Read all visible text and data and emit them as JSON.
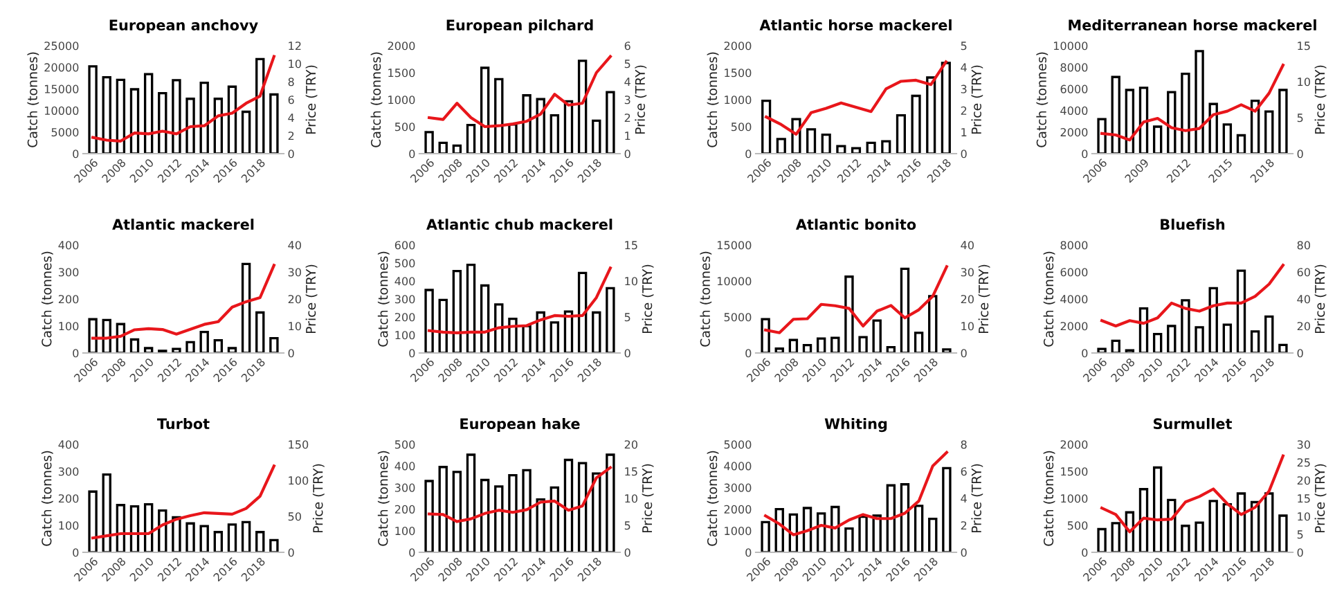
{
  "chart_data": [
    {
      "type": "bar",
      "title": "European anchovy",
      "ylabel": "Catch (tonnes)",
      "y2label": "Price (TRY)",
      "categories": [
        "2006",
        null,
        "2008",
        null,
        "2010",
        null,
        "2012",
        null,
        "2014",
        null,
        "2016",
        null,
        "2018",
        null
      ],
      "ylim": [
        0,
        25000
      ],
      "yticks": [
        0,
        5000,
        10000,
        15000,
        20000,
        25000
      ],
      "y2lim": [
        0,
        12
      ],
      "y2ticks": [
        0,
        2,
        4,
        6,
        8,
        10,
        12
      ],
      "grid": false,
      "legend": false,
      "series": [
        {
          "color": "#ffffff",
          "values": [
            20200,
            17700,
            17100,
            14900,
            18400,
            14000,
            17000,
            12700,
            16400,
            12700,
            15500,
            9700,
            21900,
            13700
          ]
        },
        {
          "type": "line",
          "axis": "y2",
          "color": "#e8161b",
          "marker": "none",
          "line_style": "solid",
          "values": [
            1.8,
            1.5,
            1.4,
            2.3,
            2.2,
            2.5,
            2.2,
            3.0,
            3.1,
            4.2,
            4.5,
            5.6,
            6.4,
            10.8
          ]
        }
      ]
    },
    {
      "type": "bar",
      "title": "European pilchard",
      "ylabel": "Catch (tonnes)",
      "y2label": "Price (TRY)",
      "categories": [
        "2006",
        null,
        "2008",
        null,
        "2010",
        null,
        "2012",
        null,
        "2014",
        null,
        "2016",
        null,
        "2018",
        null
      ],
      "ylim": [
        0,
        2000
      ],
      "yticks": [
        0,
        500,
        1000,
        1500,
        2000
      ],
      "y2lim": [
        0,
        6
      ],
      "y2ticks": [
        0,
        1,
        2,
        3,
        4,
        5,
        6
      ],
      "grid": false,
      "legend": false,
      "series": [
        {
          "color": "#ffffff",
          "values": [
            400,
            200,
            150,
            530,
            1590,
            1380,
            540,
            1080,
            1010,
            710,
            970,
            1720,
            610,
            1140
          ]
        },
        {
          "type": "line",
          "axis": "y2",
          "color": "#e8161b",
          "marker": "none",
          "line_style": "solid",
          "values": [
            2.0,
            1.9,
            2.8,
            2.0,
            1.5,
            1.55,
            1.65,
            1.8,
            2.2,
            3.3,
            2.7,
            2.8,
            4.5,
            5.4
          ]
        }
      ]
    },
    {
      "type": "bar",
      "title": "Atlantic horse mackerel",
      "ylabel": "Catch (tonnes)",
      "y2label": "Price (TRY)",
      "categories": [
        "2006",
        null,
        "2008",
        null,
        "2010",
        null,
        "2012",
        null,
        "2014",
        null,
        "2016",
        null,
        "2018"
      ],
      "ylim": [
        0,
        2000
      ],
      "yticks": [
        0,
        500,
        1000,
        1500,
        2000
      ],
      "y2lim": [
        0,
        5
      ],
      "y2ticks": [
        0,
        1,
        2,
        3,
        4,
        5
      ],
      "grid": false,
      "legend": false,
      "series": [
        {
          "color": "#ffffff",
          "values": [
            980,
            270,
            640,
            450,
            350,
            140,
            100,
            200,
            230,
            710,
            1070,
            1410,
            1680
          ]
        },
        {
          "type": "line",
          "axis": "y2",
          "color": "#e8161b",
          "marker": "none",
          "line_style": "solid",
          "values": [
            1.7,
            1.35,
            0.9,
            1.9,
            2.1,
            2.35,
            2.15,
            1.95,
            3.0,
            3.35,
            3.4,
            3.2,
            4.25
          ]
        }
      ]
    },
    {
      "type": "bar",
      "title": "Mediterranean horse mackerel",
      "ylabel": "Catch (tonnes)",
      "y2label": "Price (TRY)",
      "categories": [
        "2006",
        null,
        null,
        "2009",
        null,
        null,
        "2012",
        null,
        null,
        "2015",
        null,
        null,
        "2018",
        null
      ],
      "ylim": [
        0,
        10000
      ],
      "yticks": [
        0,
        2000,
        4000,
        6000,
        8000,
        10000
      ],
      "y2lim": [
        0,
        15
      ],
      "y2ticks": [
        0,
        5,
        10,
        15
      ],
      "grid": false,
      "legend": false,
      "series": [
        {
          "color": "#ffffff",
          "values": [
            3200,
            7100,
            5900,
            6100,
            2500,
            5700,
            7400,
            9500,
            4600,
            2700,
            1700,
            4900,
            3900,
            5900
          ]
        },
        {
          "type": "line",
          "axis": "y2",
          "color": "#e8161b",
          "marker": "none",
          "line_style": "solid",
          "values": [
            2.8,
            2.6,
            1.9,
            4.4,
            4.9,
            3.6,
            3.2,
            3.5,
            5.4,
            5.9,
            6.8,
            5.9,
            8.4,
            12.3
          ]
        }
      ]
    },
    {
      "type": "bar",
      "title": "Atlantic mackerel",
      "ylabel": "Catch (tonnes)",
      "y2label": "Price (TRY)",
      "categories": [
        "2006",
        null,
        "2008",
        null,
        "2010",
        null,
        "2012",
        null,
        "2014",
        null,
        "2016",
        null,
        "2018",
        null
      ],
      "ylim": [
        0,
        400
      ],
      "yticks": [
        0,
        100,
        200,
        300,
        400
      ],
      "y2lim": [
        0,
        40
      ],
      "y2ticks": [
        0,
        10,
        20,
        30,
        40
      ],
      "grid": false,
      "legend": false,
      "series": [
        {
          "color": "#ffffff",
          "values": [
            125,
            122,
            107,
            50,
            18,
            8,
            15,
            40,
            78,
            47,
            18,
            330,
            150,
            55
          ]
        },
        {
          "type": "line",
          "axis": "y2",
          "color": "#e8161b",
          "marker": "none",
          "line_style": "solid",
          "values": [
            5.5,
            5.5,
            6.2,
            8.6,
            9.0,
            8.7,
            7.0,
            8.8,
            10.6,
            11.6,
            17,
            19,
            20.5,
            32.5
          ]
        }
      ]
    },
    {
      "type": "bar",
      "title": "Atlantic chub mackerel",
      "ylabel": "Catch (tonnes)",
      "y2label": "Price (TRY)",
      "categories": [
        "2006",
        null,
        "2008",
        null,
        "2010",
        null,
        "2012",
        null,
        "2014",
        null,
        "2016",
        null,
        "2018",
        null
      ],
      "ylim": [
        0,
        600
      ],
      "yticks": [
        0,
        100,
        200,
        300,
        400,
        500,
        600
      ],
      "y2lim": [
        0,
        15
      ],
      "y2ticks": [
        0,
        5,
        10,
        15
      ],
      "grid": false,
      "legend": false,
      "series": [
        {
          "color": "#ffffff",
          "values": [
            350,
            295,
            455,
            490,
            375,
            270,
            190,
            150,
            225,
            170,
            230,
            445,
            225,
            360
          ]
        },
        {
          "type": "line",
          "axis": "y2",
          "color": "#e8161b",
          "marker": "none",
          "line_style": "solid",
          "values": [
            3.1,
            2.9,
            2.8,
            2.9,
            2.9,
            3.5,
            3.7,
            3.8,
            4.6,
            5.2,
            5.1,
            5.2,
            7.7,
            11.8
          ]
        }
      ]
    },
    {
      "type": "bar",
      "title": "Atlantic bonito",
      "ylabel": "Catch (tonnes)",
      "y2label": "Price (TRY)",
      "categories": [
        "2006",
        null,
        "2008",
        null,
        "2010",
        null,
        "2012",
        null,
        "2014",
        null,
        "2016",
        null,
        "2018",
        null
      ],
      "ylim": [
        0,
        15000
      ],
      "yticks": [
        0,
        5000,
        10000,
        15000
      ],
      "y2lim": [
        0,
        40
      ],
      "y2ticks": [
        0,
        10,
        20,
        30,
        40
      ],
      "grid": false,
      "legend": false,
      "series": [
        {
          "color": "#ffffff",
          "values": [
            4700,
            600,
            1800,
            1100,
            2000,
            2100,
            10600,
            2200,
            4500,
            800,
            11700,
            2800,
            7900,
            500
          ]
        },
        {
          "type": "line",
          "axis": "y2",
          "color": "#e8161b",
          "marker": "none",
          "line_style": "solid",
          "values": [
            8.5,
            7.5,
            12.5,
            12.7,
            18,
            17.5,
            16.5,
            10,
            15.5,
            17.6,
            13,
            16,
            21,
            32
          ]
        }
      ]
    },
    {
      "type": "bar",
      "title": "Bluefish",
      "ylabel": "Catch (tonnes)",
      "y2label": "Price (TRY)",
      "categories": [
        "2006",
        null,
        "2008",
        null,
        "2010",
        null,
        "2012",
        null,
        "2014",
        null,
        "2016",
        null,
        "2018",
        null
      ],
      "ylim": [
        0,
        8000
      ],
      "yticks": [
        0,
        2000,
        4000,
        6000,
        8000
      ],
      "y2lim": [
        0,
        80
      ],
      "y2ticks": [
        0,
        20,
        40,
        60,
        80
      ],
      "grid": false,
      "legend": false,
      "series": [
        {
          "color": "#ffffff",
          "values": [
            300,
            900,
            200,
            3300,
            1400,
            2000,
            3900,
            1900,
            4800,
            2100,
            6100,
            1600,
            2700,
            600
          ]
        },
        {
          "type": "line",
          "axis": "y2",
          "color": "#e8161b",
          "marker": "none",
          "line_style": "solid",
          "values": [
            24,
            20,
            24,
            22,
            26,
            37,
            33,
            31,
            35,
            37,
            37,
            42,
            51,
            65
          ]
        }
      ]
    },
    {
      "type": "bar",
      "title": "Turbot",
      "ylabel": "Catch (tonnes)",
      "y2label": "Price (TRY)",
      "categories": [
        "2006",
        null,
        "2008",
        null,
        "2010",
        null,
        "2012",
        null,
        "2014",
        null,
        "2016",
        null,
        "2018",
        null
      ],
      "ylim": [
        0,
        400
      ],
      "yticks": [
        0,
        100,
        200,
        300,
        400
      ],
      "y2lim": [
        0,
        150
      ],
      "y2ticks": [
        0,
        50,
        100,
        150
      ],
      "grid": false,
      "legend": false,
      "series": [
        {
          "color": "#ffffff",
          "values": [
            225,
            288,
            175,
            170,
            178,
            155,
            130,
            107,
            97,
            75,
            103,
            112,
            75,
            45
          ]
        },
        {
          "type": "line",
          "axis": "y2",
          "color": "#e8161b",
          "marker": "none",
          "line_style": "solid",
          "values": [
            20,
            23,
            26,
            26,
            26,
            38,
            46,
            51,
            55,
            54,
            53,
            61,
            78,
            120
          ]
        }
      ]
    },
    {
      "type": "bar",
      "title": "European hake",
      "ylabel": "Catch (tonnes)",
      "y2label": "Price (TRY)",
      "categories": [
        "2006",
        null,
        "2008",
        null,
        "2010",
        null,
        "2012",
        null,
        "2014",
        null,
        "2016",
        null,
        "2018",
        null
      ],
      "ylim": [
        0,
        500
      ],
      "yticks": [
        0,
        100,
        200,
        300,
        400,
        500
      ],
      "y2lim": [
        0,
        20
      ],
      "y2ticks": [
        0,
        5,
        10,
        15,
        20
      ],
      "grid": false,
      "legend": false,
      "series": [
        {
          "color": "#ffffff",
          "values": [
            330,
            395,
            372,
            452,
            335,
            305,
            357,
            380,
            245,
            300,
            428,
            413,
            365,
            452
          ]
        },
        {
          "type": "line",
          "axis": "y2",
          "color": "#e8161b",
          "marker": "none",
          "line_style": "solid",
          "values": [
            7.1,
            7.0,
            5.7,
            6.2,
            7.2,
            7.8,
            7.4,
            7.9,
            9.3,
            9.5,
            7.8,
            8.6,
            13.8,
            15.7
          ]
        }
      ]
    },
    {
      "type": "bar",
      "title": "Whiting",
      "ylabel": "Catch (tonnes)",
      "y2label": "Price (TRY)",
      "categories": [
        "2006",
        null,
        "2008",
        null,
        "2010",
        null,
        "2012",
        null,
        "2014",
        null,
        "2016",
        null,
        "2018",
        null
      ],
      "ylim": [
        0,
        5000
      ],
      "yticks": [
        0,
        1000,
        2000,
        3000,
        4000,
        5000
      ],
      "y2lim": [
        0,
        8
      ],
      "y2ticks": [
        0,
        2,
        4,
        6,
        8
      ],
      "grid": false,
      "legend": false,
      "series": [
        {
          "color": "#ffffff",
          "values": [
            1400,
            2000,
            1750,
            2050,
            1800,
            2100,
            1100,
            1650,
            1700,
            3100,
            3150,
            2150,
            1550,
            3900
          ]
        },
        {
          "type": "line",
          "axis": "y2",
          "color": "#e8161b",
          "marker": "none",
          "line_style": "solid",
          "values": [
            2.7,
            2.1,
            1.3,
            1.6,
            2.0,
            1.8,
            2.4,
            2.8,
            2.5,
            2.5,
            2.9,
            3.8,
            6.4,
            7.4
          ]
        }
      ]
    },
    {
      "type": "bar",
      "title": "Surmullet",
      "ylabel": "Catch (tonnes)",
      "y2label": "Price (TRY)",
      "categories": [
        "2006",
        null,
        "2008",
        null,
        "2010",
        null,
        "2012",
        null,
        "2014",
        null,
        "2016",
        null,
        "2018",
        null
      ],
      "ylim": [
        0,
        2000
      ],
      "yticks": [
        0,
        500,
        1000,
        1500,
        2000
      ],
      "y2lim": [
        0,
        30
      ],
      "y2ticks": [
        0,
        5,
        10,
        15,
        20,
        25,
        30
      ],
      "grid": false,
      "legend": false,
      "series": [
        {
          "color": "#ffffff",
          "values": [
            430,
            540,
            740,
            1170,
            1570,
            970,
            490,
            550,
            950,
            890,
            1090,
            930,
            1090,
            680
          ]
        },
        {
          "type": "line",
          "axis": "y2",
          "color": "#e8161b",
          "marker": "none",
          "line_style": "solid",
          "values": [
            12.3,
            10.5,
            5.7,
            9.5,
            9,
            9.2,
            14,
            15.5,
            17.6,
            13.5,
            10.5,
            12.5,
            17,
            26.8
          ]
        }
      ]
    }
  ]
}
